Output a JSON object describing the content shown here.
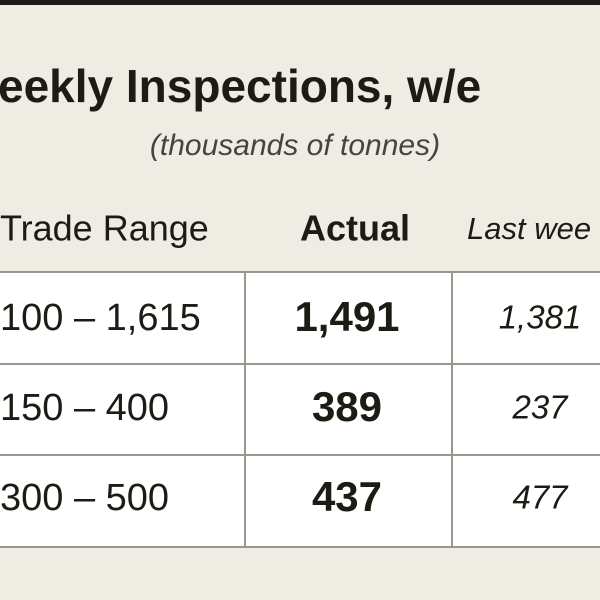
{
  "header": {
    "title": "eekly Inspections, w/e",
    "subtitle": "(thousands of tonnes)"
  },
  "table": {
    "columns": [
      "Trade Range",
      "Actual",
      "Last wee"
    ],
    "rows": [
      [
        "100 – 1,615",
        "1,491",
        "1,381"
      ],
      [
        "150 – 400",
        "389",
        "237"
      ],
      [
        "300 – 500",
        "437",
        "477"
      ]
    ]
  }
}
